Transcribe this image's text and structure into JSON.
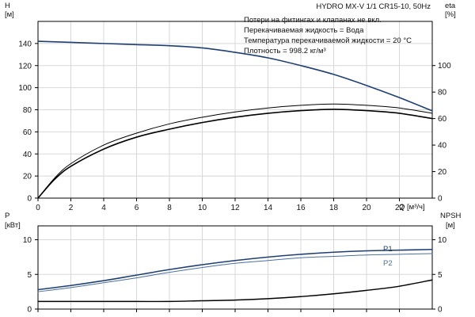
{
  "header": {
    "product_title": "HYDRO MX-V 1/1 CR15-10, 50Hz"
  },
  "notes": [
    "Потери на фитингах и клапанах не вкл.",
    "Перекачиваемая жидкость = Вода",
    "Температура перекачиваемой жидкости = 20 °C",
    "Плотность = 998.2 кг/м³"
  ],
  "colors": {
    "head_curve": "#1f3f73",
    "p1_curve": "#1f3f73",
    "p2_curve": "#4a6fa0",
    "black_curve": "#000000",
    "grid": "#d8d8d8",
    "axis": "#000000"
  },
  "chart_data": [
    {
      "id": "top",
      "type": "line",
      "xlabel": "Q [м³/ч]",
      "xlim": [
        0,
        24
      ],
      "x_ticks": [
        0,
        2,
        4,
        6,
        8,
        10,
        12,
        14,
        16,
        18,
        20,
        22
      ],
      "grid": true,
      "left_axis": {
        "label_line1": "H",
        "label_line2": "[м]",
        "lim": [
          0,
          160
        ],
        "ticks": [
          0,
          20,
          40,
          60,
          80,
          100,
          120,
          140
        ]
      },
      "right_axis": {
        "label_line1": "eta",
        "label_line2": "[%]",
        "lim": [
          0,
          133.3
        ],
        "ticks": [
          0,
          20,
          40,
          60,
          80,
          100
        ]
      },
      "series": [
        {
          "key": "head",
          "axis": "left",
          "x": [
            0,
            2,
            4,
            6,
            8,
            10,
            12,
            14,
            16,
            18,
            20,
            22,
            24
          ],
          "values": [
            142,
            141,
            140,
            139,
            138,
            136,
            132,
            127,
            120,
            112,
            102,
            91,
            79
          ]
        },
        {
          "key": "eta_upper",
          "axis": "right",
          "x": [
            0,
            1,
            2,
            4,
            6,
            8,
            10,
            12,
            14,
            16,
            18,
            20,
            22,
            24
          ],
          "values": [
            0,
            15,
            26,
            40,
            49,
            56,
            61,
            65,
            68,
            70,
            71,
            70,
            68,
            64
          ]
        },
        {
          "key": "eta_lower",
          "axis": "right",
          "x": [
            0,
            1,
            2,
            4,
            6,
            8,
            10,
            12,
            14,
            16,
            18,
            20,
            22,
            24
          ],
          "values": [
            0,
            14,
            24,
            37,
            46,
            52,
            57,
            61,
            64,
            66,
            67,
            66,
            64,
            60
          ]
        }
      ]
    },
    {
      "id": "bottom",
      "type": "line",
      "xlim": [
        0,
        24
      ],
      "x_ticks": [
        0,
        2,
        4,
        6,
        8,
        10,
        12,
        14,
        16,
        18,
        20,
        22
      ],
      "grid": true,
      "left_axis": {
        "label_line1": "P",
        "label_line2": "[кВт]",
        "lim": [
          0,
          12
        ],
        "ticks": [
          0,
          5,
          10
        ]
      },
      "right_axis": {
        "label_line1": "NPSH",
        "label_line2": "[м]",
        "lim": [
          0,
          12
        ],
        "ticks": [
          0,
          5,
          10
        ]
      },
      "series": [
        {
          "key": "p1",
          "name": "P1",
          "axis": "left",
          "x": [
            0,
            2,
            4,
            6,
            8,
            10,
            12,
            14,
            16,
            18,
            20,
            22,
            24
          ],
          "values": [
            2.8,
            3.4,
            4.1,
            4.9,
            5.7,
            6.4,
            7.0,
            7.5,
            7.9,
            8.2,
            8.4,
            8.5,
            8.6
          ]
        },
        {
          "key": "p2",
          "name": "P2",
          "axis": "left",
          "x": [
            0,
            2,
            4,
            6,
            8,
            10,
            12,
            14,
            16,
            18,
            20,
            22,
            24
          ],
          "values": [
            2.5,
            3.1,
            3.8,
            4.5,
            5.3,
            6.0,
            6.6,
            7.0,
            7.4,
            7.6,
            7.8,
            7.9,
            8.0
          ]
        },
        {
          "key": "npsh",
          "axis": "right",
          "x": [
            0,
            2,
            4,
            6,
            8,
            10,
            12,
            14,
            16,
            18,
            20,
            22,
            24
          ],
          "values": [
            1.1,
            1.1,
            1.1,
            1.1,
            1.1,
            1.2,
            1.3,
            1.5,
            1.8,
            2.2,
            2.7,
            3.3,
            4.2
          ]
        }
      ]
    }
  ]
}
